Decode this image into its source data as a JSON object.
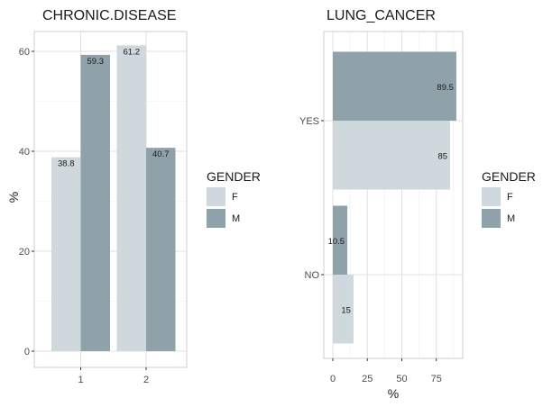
{
  "chart_data": [
    {
      "type": "bar",
      "orientation": "vertical",
      "title": "CHRONIC.DISEASE",
      "xlabel": "",
      "ylabel": "%",
      "categories": [
        "1",
        "2"
      ],
      "series": [
        {
          "name": "F",
          "values": [
            38.8,
            61.2
          ]
        },
        {
          "name": "M",
          "values": [
            59.3,
            40.7
          ]
        }
      ],
      "data_labels": [
        [
          "38.8",
          "61.2"
        ],
        [
          "59.3",
          "40.7"
        ]
      ],
      "y_ticks": [
        "0",
        "20",
        "40",
        "60"
      ],
      "ylim": [
        0,
        64
      ],
      "grid": true,
      "legend": {
        "title": "GENDER",
        "position": "right",
        "items": [
          "F",
          "M"
        ]
      }
    },
    {
      "type": "bar",
      "orientation": "horizontal",
      "title": "LUNG_CANCER",
      "xlabel": "%",
      "ylabel": "",
      "categories": [
        "NO",
        "YES"
      ],
      "series": [
        {
          "name": "F",
          "values": [
            15,
            85
          ]
        },
        {
          "name": "M",
          "values": [
            10.5,
            89.5
          ]
        }
      ],
      "data_labels": [
        [
          "15",
          "85"
        ],
        [
          "10.5",
          "89.5"
        ]
      ],
      "x_ticks": [
        "0",
        "25",
        "50",
        "75"
      ],
      "xlim": [
        0,
        94
      ],
      "grid": true,
      "legend": {
        "title": "GENDER",
        "position": "right",
        "items": [
          "F",
          "M"
        ]
      }
    }
  ],
  "colors": {
    "F": "#cfd8dd",
    "M": "#8fa1a9",
    "panel_border": "#cfcfcf",
    "grid_major": "#e0e0e0",
    "grid_minor": "#f0f0f0"
  }
}
